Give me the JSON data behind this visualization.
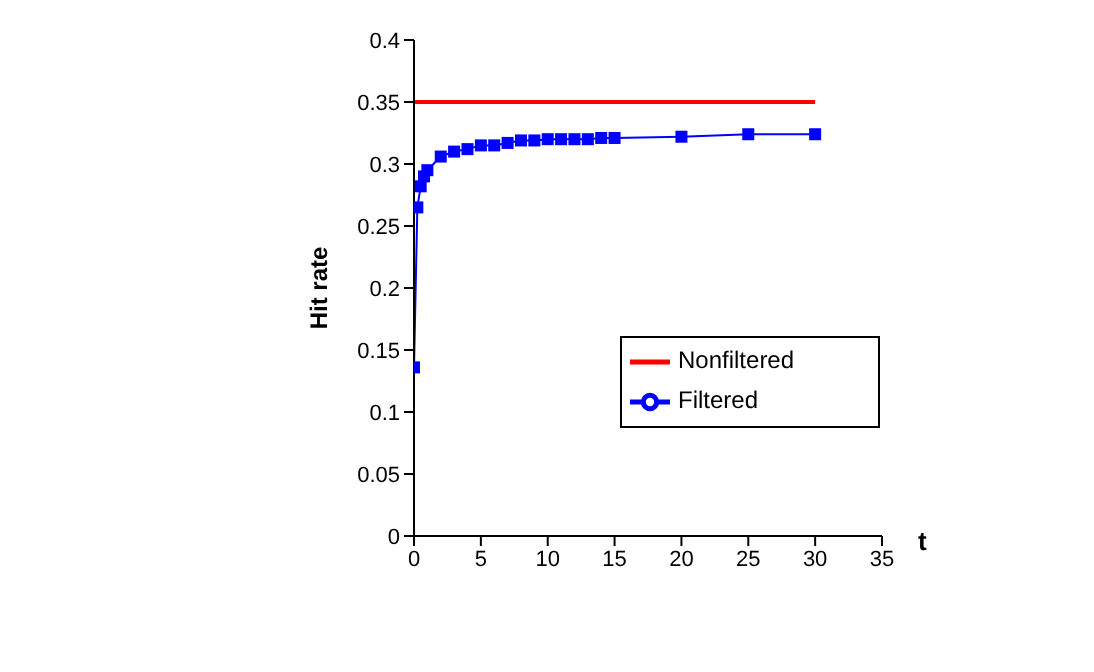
{
  "chart_data": {
    "type": "line",
    "xlabel": "t",
    "ylabel": "Hit rate",
    "xlim": [
      0,
      35
    ],
    "xticks": [
      0,
      5,
      10,
      15,
      20,
      25,
      30,
      35
    ],
    "ylim": [
      0,
      0.4
    ],
    "yticks": [
      0,
      0.05,
      0.1,
      0.15,
      0.2,
      0.25,
      0.3,
      0.35,
      0.4
    ],
    "grid": false,
    "legend": "right",
    "series": [
      {
        "name": "Nonfiltered",
        "color": "#ff0000",
        "marker": "none",
        "x": [
          0,
          30
        ],
        "values": [
          0.35,
          0.35
        ]
      },
      {
        "name": "Filtered",
        "color": "#0000ff",
        "marker": "square",
        "x": [
          0,
          0.25,
          0.5,
          0.75,
          1,
          2,
          3,
          4,
          5,
          6,
          7,
          8,
          9,
          10,
          11,
          12,
          13,
          14,
          15,
          20,
          25,
          30
        ],
        "values": [
          0.136,
          0.265,
          0.282,
          0.29,
          0.295,
          0.306,
          0.31,
          0.312,
          0.315,
          0.315,
          0.317,
          0.319,
          0.319,
          0.32,
          0.32,
          0.32,
          0.32,
          0.321,
          0.321,
          0.322,
          0.324,
          0.324
        ]
      }
    ]
  }
}
